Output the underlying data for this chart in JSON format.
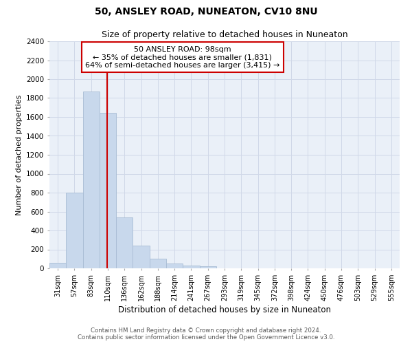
{
  "title1": "50, ANSLEY ROAD, NUNEATON, CV10 8NU",
  "title2": "Size of property relative to detached houses in Nuneaton",
  "xlabel": "Distribution of detached houses by size in Nuneaton",
  "ylabel": "Number of detached properties",
  "footer1": "Contains HM Land Registry data © Crown copyright and database right 2024.",
  "footer2": "Contains public sector information licensed under the Open Government Licence v3.0.",
  "bins": [
    "31sqm",
    "57sqm",
    "83sqm",
    "110sqm",
    "136sqm",
    "162sqm",
    "188sqm",
    "214sqm",
    "241sqm",
    "267sqm",
    "293sqm",
    "319sqm",
    "345sqm",
    "372sqm",
    "398sqm",
    "424sqm",
    "450sqm",
    "476sqm",
    "503sqm",
    "529sqm",
    "555sqm"
  ],
  "values": [
    55,
    800,
    1870,
    1640,
    540,
    240,
    105,
    50,
    30,
    20,
    0,
    0,
    0,
    0,
    0,
    0,
    0,
    0,
    0,
    0,
    0
  ],
  "bar_color": "#c8d8ec",
  "bar_edge_color": "#a8bcd4",
  "property_label": "50 ANSLEY ROAD: 98sqm",
  "annotation_line1": "← 35% of detached houses are smaller (1,831)",
  "annotation_line2": "64% of semi-detached houses are larger (3,415) →",
  "annotation_box_color": "#ffffff",
  "annotation_box_edge": "#cc0000",
  "red_line_color": "#cc0000",
  "ylim": [
    0,
    2400
  ],
  "yticks": [
    0,
    200,
    400,
    600,
    800,
    1000,
    1200,
    1400,
    1600,
    1800,
    2000,
    2200,
    2400
  ],
  "grid_color": "#d0d8e8",
  "bg_color": "#eaf0f8",
  "fig_bg": "#ffffff"
}
